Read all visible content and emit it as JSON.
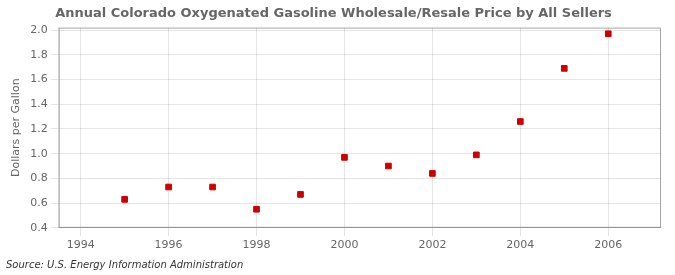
{
  "chart_data": {
    "type": "scatter",
    "title": "Annual Colorado Oxygenated Gasoline Wholesale/Resale Price by All Sellers",
    "y_label": "Dollars per Gallon",
    "annotation": "Source: U.S. Energy Information Administration",
    "x": [
      1995,
      1996,
      1997,
      1998,
      1999,
      2000,
      2001,
      2002,
      2003,
      2004,
      2005,
      2006
    ],
    "values": [
      0.63,
      0.73,
      0.73,
      0.55,
      0.67,
      0.97,
      0.9,
      0.84,
      0.99,
      1.26,
      1.69,
      1.97
    ],
    "color": "#cc0000",
    "marker": "square",
    "xlim": [
      1993.5,
      2007.2
    ],
    "ylim": [
      0.4,
      2.02
    ],
    "xticks": [
      1994,
      1996,
      1998,
      2000,
      2002,
      2004,
      2006
    ],
    "yticks": [
      0.4,
      0.6,
      0.8,
      {
        "value": 1,
        "label": "1.0"
      },
      1.2,
      1.4,
      1.6,
      1.8,
      {
        "value": 2,
        "label": "2.0"
      }
    ],
    "grid": true
  }
}
